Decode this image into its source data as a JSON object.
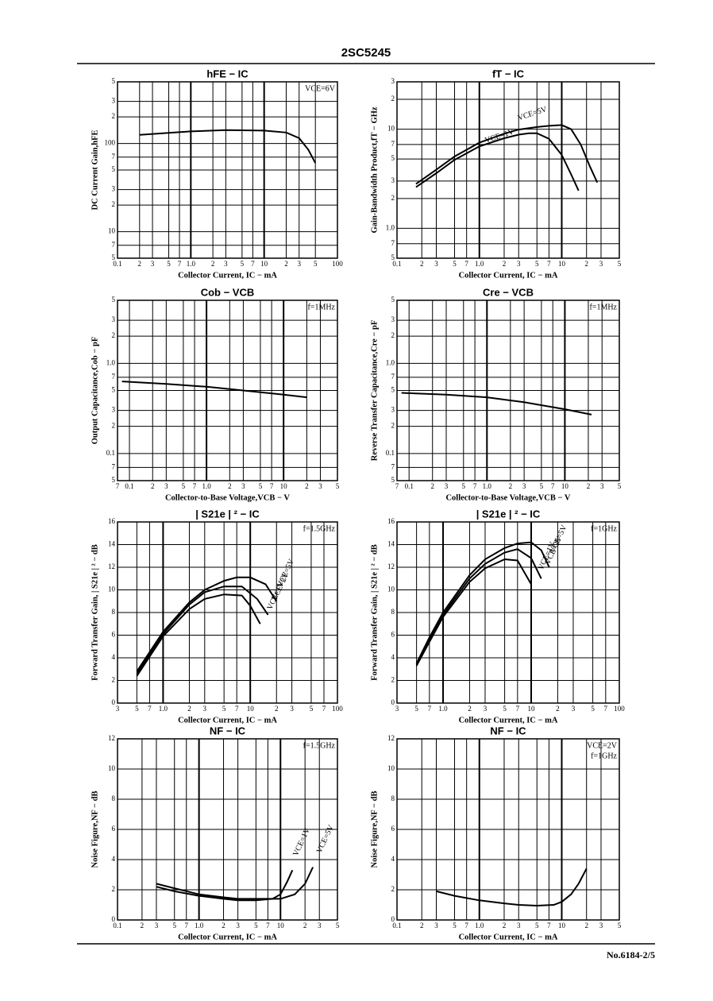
{
  "header": "2SC5245",
  "footer": "No.6184-2/5",
  "chart_data": [
    {
      "type": "line",
      "title": "hFE − IC",
      "xlabel": "Collector Current, IC − mA",
      "ylabel": "DC Current Gain,hFE",
      "annotation": "VCE=6V",
      "color": "#000",
      "grid": true,
      "xscale": "log",
      "yscale": "log",
      "xlim": [
        0.1,
        100
      ],
      "ylim": [
        5,
        500
      ],
      "xticks": [
        0.1,
        {
          "value": 0.2,
          "label": "2"
        },
        {
          "value": 0.3,
          "label": "3"
        },
        {
          "value": 0.5,
          "label": "5"
        },
        {
          "value": 0.7,
          "label": "7"
        },
        {
          "value": 1,
          "label": "1.0"
        },
        2,
        3,
        5,
        7,
        10,
        {
          "value": 20,
          "label": "2"
        },
        {
          "value": 30,
          "label": "3"
        },
        {
          "value": 50,
          "label": "5"
        },
        100
      ],
      "yticks": [
        5,
        7,
        10,
        {
          "value": 20,
          "label": "2"
        },
        {
          "value": 30,
          "label": "3"
        },
        {
          "value": 50,
          "label": "5"
        },
        {
          "value": 70,
          "label": "7"
        },
        100,
        {
          "value": 200,
          "label": "2"
        },
        {
          "value": 300,
          "label": "3"
        },
        {
          "value": 500,
          "label": "5"
        }
      ],
      "series": [
        {
          "x": [
            0.2,
            0.5,
            1,
            3,
            10,
            20,
            30,
            40,
            50
          ],
          "values": [
            125,
            132,
            137,
            142,
            140,
            133,
            115,
            85,
            60
          ]
        }
      ]
    },
    {
      "type": "line",
      "title": "fT − IC",
      "xlabel": "Collector Current, IC − mA",
      "ylabel": "Gain-Bandwidth Product,fT − GHz",
      "color": "#000",
      "grid": true,
      "xscale": "log",
      "yscale": "log",
      "xlim": [
        0.1,
        50
      ],
      "ylim": [
        0.5,
        30
      ],
      "xticks": [
        0.1,
        {
          "value": 0.2,
          "label": "2"
        },
        {
          "value": 0.3,
          "label": "3"
        },
        {
          "value": 0.5,
          "label": "5"
        },
        {
          "value": 0.7,
          "label": "7"
        },
        {
          "value": 1,
          "label": "1.0"
        },
        2,
        3,
        5,
        7,
        10,
        {
          "value": 20,
          "label": "2"
        },
        {
          "value": 30,
          "label": "3"
        },
        {
          "value": 50,
          "label": "5"
        }
      ],
      "yticks": [
        {
          "value": 0.5,
          "label": "5"
        },
        {
          "value": 0.7,
          "label": "7"
        },
        {
          "value": 1,
          "label": "1.0"
        },
        2,
        3,
        5,
        7,
        10,
        {
          "value": 20,
          "label": "2"
        },
        {
          "value": 30,
          "label": "3"
        }
      ],
      "series": [
        {
          "name": "VCE=5V",
          "x": [
            0.17,
            0.3,
            0.5,
            1,
            2,
            3,
            5,
            7,
            10,
            13,
            17,
            22,
            27
          ],
          "values": [
            2.8,
            3.9,
            5.3,
            7.3,
            9,
            9.9,
            10.5,
            10.8,
            11,
            10,
            7,
            4.2,
            2.9
          ]
        },
        {
          "name": "VCE=1V",
          "x": [
            0.17,
            0.3,
            0.5,
            1,
            2,
            3,
            4,
            5,
            7,
            10,
            13,
            16
          ],
          "values": [
            2.6,
            3.6,
            4.9,
            6.7,
            8.1,
            8.8,
            9.1,
            9.1,
            8,
            5.5,
            3.5,
            2.4
          ]
        }
      ]
    },
    {
      "type": "line",
      "title": "Cob − VCB",
      "xlabel": "Collector-to-Base Voltage,VCB − V",
      "ylabel": "Output Capacitance,Cob − pF",
      "annotation": "f=1MHz",
      "color": "#000",
      "grid": true,
      "xscale": "log",
      "yscale": "log",
      "xlim": [
        0.07,
        50
      ],
      "ylim": [
        0.05,
        5
      ],
      "xticks": [
        {
          "value": 0.07,
          "label": "7"
        },
        0.1,
        {
          "value": 0.2,
          "label": "2"
        },
        {
          "value": 0.3,
          "label": "3"
        },
        {
          "value": 0.5,
          "label": "5"
        },
        {
          "value": 0.7,
          "label": "7"
        },
        {
          "value": 1,
          "label": "1.0"
        },
        2,
        3,
        5,
        7,
        10,
        {
          "value": 20,
          "label": "2"
        },
        {
          "value": 30,
          "label": "3"
        },
        {
          "value": 50,
          "label": "5"
        }
      ],
      "yticks": [
        {
          "value": 0.05,
          "label": "5"
        },
        {
          "value": 0.07,
          "label": "7"
        },
        0.1,
        {
          "value": 0.2,
          "label": "2"
        },
        {
          "value": 0.3,
          "label": "3"
        },
        {
          "value": 0.5,
          "label": "5"
        },
        {
          "value": 0.7,
          "label": "7"
        },
        {
          "value": 1,
          "label": "1.0"
        },
        2,
        3,
        5
      ],
      "series": [
        {
          "x": [
            0.08,
            0.3,
            1,
            3,
            10,
            20
          ],
          "values": [
            0.63,
            0.59,
            0.55,
            0.5,
            0.45,
            0.42
          ]
        }
      ]
    },
    {
      "type": "line",
      "title": "Cre − VCB",
      "xlabel": "Collector-to-Base Voltage,VCB − V",
      "ylabel": "Reverse Transfer Capacitance,Cre − pF",
      "annotation": "f=1MHz",
      "color": "#000",
      "grid": true,
      "xscale": "log",
      "yscale": "log",
      "xlim": [
        0.07,
        50
      ],
      "ylim": [
        0.05,
        5
      ],
      "xticks": [
        {
          "value": 0.07,
          "label": "7"
        },
        0.1,
        {
          "value": 0.2,
          "label": "2"
        },
        {
          "value": 0.3,
          "label": "3"
        },
        {
          "value": 0.5,
          "label": "5"
        },
        {
          "value": 0.7,
          "label": "7"
        },
        {
          "value": 1,
          "label": "1.0"
        },
        2,
        3,
        5,
        7,
        10,
        {
          "value": 20,
          "label": "2"
        },
        {
          "value": 30,
          "label": "3"
        },
        {
          "value": 50,
          "label": "5"
        }
      ],
      "yticks": [
        {
          "value": 0.05,
          "label": "5"
        },
        {
          "value": 0.07,
          "label": "7"
        },
        0.1,
        {
          "value": 0.2,
          "label": "2"
        },
        {
          "value": 0.3,
          "label": "3"
        },
        {
          "value": 0.5,
          "label": "5"
        },
        {
          "value": 0.7,
          "label": "7"
        },
        {
          "value": 1,
          "label": "1.0"
        },
        2,
        3,
        5
      ],
      "series": [
        {
          "x": [
            0.08,
            0.3,
            1,
            3,
            10,
            22
          ],
          "values": [
            0.47,
            0.45,
            0.42,
            0.37,
            0.31,
            0.27
          ]
        }
      ]
    },
    {
      "type": "line",
      "title": "| S21e | ² − IC",
      "xlabel": "Collector Current, IC − mA",
      "ylabel": "Forward Transfer Gain, | S21e | ² − dB",
      "annotation": "f=1.5GHz",
      "color": "#000",
      "grid": true,
      "xscale": "log",
      "yscale": "linear",
      "xlim": [
        0.3,
        100
      ],
      "ylim": [
        0,
        16
      ],
      "xticks": [
        {
          "value": 0.3,
          "label": "3"
        },
        {
          "value": 0.5,
          "label": "5"
        },
        {
          "value": 0.7,
          "label": "7"
        },
        {
          "value": 1,
          "label": "1.0"
        },
        2,
        3,
        5,
        7,
        10,
        {
          "value": 20,
          "label": "2"
        },
        {
          "value": 30,
          "label": "3"
        },
        {
          "value": 50,
          "label": "5"
        },
        {
          "value": 70,
          "label": "7"
        },
        100
      ],
      "yticks": [
        0,
        2,
        4,
        6,
        8,
        10,
        12,
        14,
        16
      ],
      "series": [
        {
          "name": "VCE=5V",
          "x": [
            0.5,
            0.7,
            1,
            2,
            3,
            5,
            7,
            10,
            15,
            20
          ],
          "values": [
            2.8,
            4.5,
            6.3,
            8.9,
            10,
            10.8,
            11.1,
            11.1,
            10.5,
            9
          ]
        },
        {
          "name": "VCE=2V",
          "x": [
            0.5,
            0.7,
            1,
            2,
            3,
            5,
            8,
            12,
            16
          ],
          "values": [
            2.6,
            4.3,
            6.1,
            8.7,
            9.8,
            10.3,
            10.3,
            9.2,
            7.8
          ]
        },
        {
          "name": "VCE=1V",
          "x": [
            0.5,
            0.7,
            1,
            2,
            3,
            5,
            8,
            10,
            13
          ],
          "values": [
            2.4,
            4.1,
            5.9,
            8.3,
            9.2,
            9.6,
            9.5,
            8.6,
            7
          ]
        }
      ]
    },
    {
      "type": "line",
      "title": "| S21e | ² − IC",
      "xlabel": "Collector Current, IC − mA",
      "ylabel": "Forward Transfer Gain, | S21e | ² − dB",
      "annotation": "f=1GHz",
      "color": "#000",
      "grid": true,
      "xscale": "log",
      "yscale": "linear",
      "xlim": [
        0.3,
        100
      ],
      "ylim": [
        0,
        16
      ],
      "xticks": [
        {
          "value": 0.3,
          "label": "3"
        },
        {
          "value": 0.5,
          "label": "5"
        },
        {
          "value": 0.7,
          "label": "7"
        },
        {
          "value": 1,
          "label": "1.0"
        },
        2,
        3,
        5,
        7,
        10,
        {
          "value": 20,
          "label": "2"
        },
        {
          "value": 30,
          "label": "3"
        },
        {
          "value": 50,
          "label": "5"
        },
        {
          "value": 70,
          "label": "7"
        },
        100
      ],
      "yticks": [
        0,
        2,
        4,
        6,
        8,
        10,
        12,
        14,
        16
      ],
      "series": [
        {
          "name": "VCE=5V",
          "x": [
            0.5,
            0.7,
            1,
            2,
            3,
            5,
            7,
            10,
            13,
            16
          ],
          "values": [
            3.5,
            5.8,
            8,
            11.3,
            12.7,
            13.7,
            14.1,
            14.2,
            13.5,
            12
          ]
        },
        {
          "name": "VCE=2V",
          "x": [
            0.5,
            0.7,
            1,
            2,
            3,
            5,
            7,
            10,
            13
          ],
          "values": [
            3.4,
            5.6,
            7.8,
            11,
            12.3,
            13.3,
            13.6,
            12.8,
            11
          ]
        },
        {
          "name": "VCE=1V",
          "x": [
            0.5,
            0.7,
            1,
            2,
            3,
            5,
            7,
            10
          ],
          "values": [
            3.3,
            5.4,
            7.6,
            10.7,
            11.9,
            12.7,
            12.6,
            10.5
          ]
        }
      ]
    },
    {
      "type": "line",
      "title": "NF − IC",
      "xlabel": "Collector Current, IC − mA",
      "ylabel": "Noise Figure,NF − dB",
      "annotation": "f=1.5GHz",
      "color": "#000",
      "grid": true,
      "xscale": "log",
      "yscale": "linear",
      "xlim": [
        0.1,
        50
      ],
      "ylim": [
        0,
        12
      ],
      "xticks": [
        0.1,
        {
          "value": 0.2,
          "label": "2"
        },
        {
          "value": 0.3,
          "label": "3"
        },
        {
          "value": 0.5,
          "label": "5"
        },
        {
          "value": 0.7,
          "label": "7"
        },
        {
          "value": 1,
          "label": "1.0"
        },
        2,
        3,
        5,
        7,
        10,
        {
          "value": 20,
          "label": "2"
        },
        {
          "value": 30,
          "label": "3"
        },
        {
          "value": 50,
          "label": "5"
        }
      ],
      "yticks": [
        0,
        2,
        4,
        6,
        8,
        10,
        12
      ],
      "series": [
        {
          "name": "VCE=1V",
          "x": [
            0.3,
            0.5,
            1,
            2,
            3,
            5,
            8,
            10,
            12,
            14
          ],
          "values": [
            2.2,
            1.9,
            1.6,
            1.4,
            1.3,
            1.3,
            1.4,
            1.7,
            2.5,
            3.3
          ]
        },
        {
          "name": "VCE=5V",
          "x": [
            0.3,
            0.5,
            1,
            2,
            3,
            5,
            10,
            15,
            20,
            25
          ],
          "values": [
            2.4,
            2.1,
            1.7,
            1.5,
            1.4,
            1.4,
            1.4,
            1.7,
            2.4,
            3.5
          ]
        }
      ]
    },
    {
      "type": "line",
      "title": "NF − IC",
      "xlabel": "Collector Current, IC − mA",
      "ylabel": "Noise Figure,NF − dB",
      "annotation": "VCE=2V",
      "annotation2": "f=1GHz",
      "color": "#000",
      "grid": true,
      "xscale": "log",
      "yscale": "linear",
      "xlim": [
        0.1,
        50
      ],
      "ylim": [
        0,
        12
      ],
      "xticks": [
        0.1,
        {
          "value": 0.2,
          "label": "2"
        },
        {
          "value": 0.3,
          "label": "3"
        },
        {
          "value": 0.5,
          "label": "5"
        },
        {
          "value": 0.7,
          "label": "7"
        },
        {
          "value": 1,
          "label": "1.0"
        },
        2,
        3,
        5,
        7,
        10,
        {
          "value": 20,
          "label": "2"
        },
        {
          "value": 30,
          "label": "3"
        },
        {
          "value": 50,
          "label": "5"
        }
      ],
      "yticks": [
        0,
        2,
        4,
        6,
        8,
        10,
        12
      ],
      "series": [
        {
          "x": [
            0.3,
            0.5,
            1,
            2,
            3,
            5,
            8,
            10,
            13,
            16,
            20
          ],
          "values": [
            1.9,
            1.6,
            1.3,
            1.1,
            1,
            0.95,
            1,
            1.2,
            1.7,
            2.4,
            3.4
          ]
        }
      ]
    }
  ]
}
